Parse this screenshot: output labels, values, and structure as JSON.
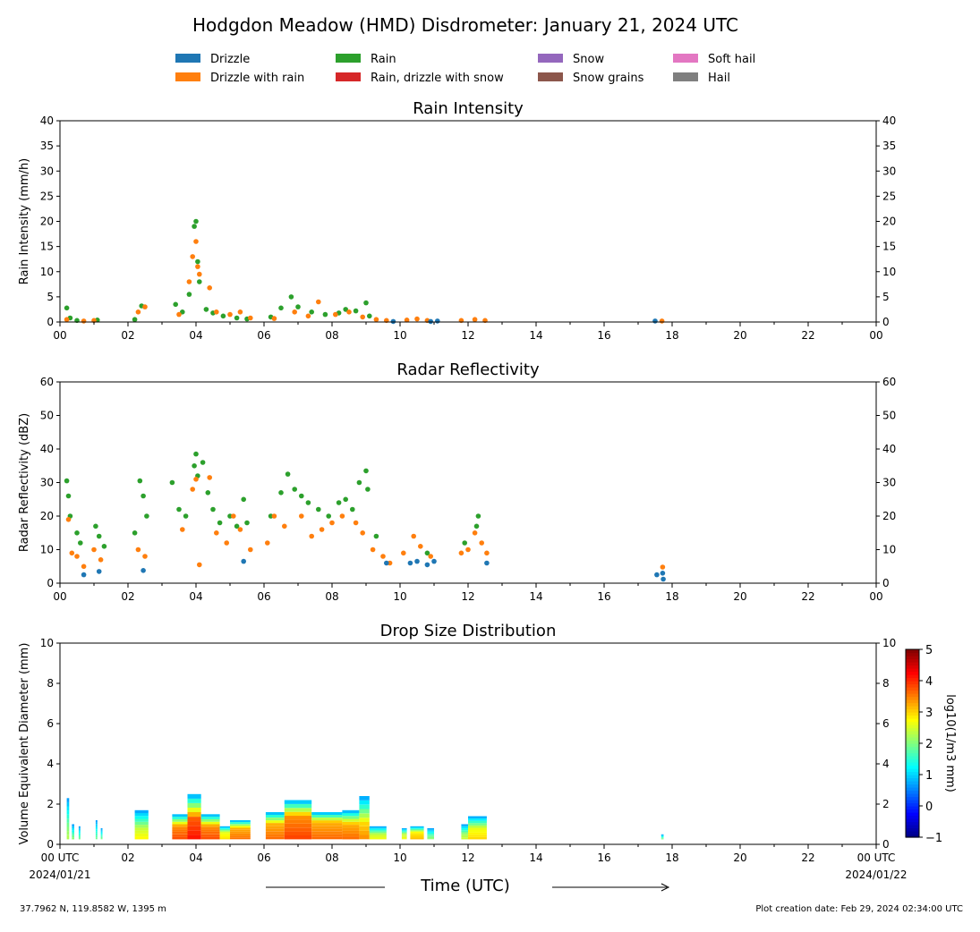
{
  "title": "Hodgdon Meadow (HMD) Disdrometer: January 21, 2024 UTC",
  "legend": [
    {
      "label": "Drizzle",
      "color": "#1f77b4"
    },
    {
      "label": "Drizzle with rain",
      "color": "#ff7f0e"
    },
    {
      "label": "Rain",
      "color": "#2ca02c"
    },
    {
      "label": "Rain, drizzle with snow",
      "color": "#d62728"
    },
    {
      "label": "Snow",
      "color": "#9467bd"
    },
    {
      "label": "Snow grains",
      "color": "#8c564b"
    },
    {
      "label": "Soft hail",
      "color": "#e377c2"
    },
    {
      "label": "Hail",
      "color": "#7f7f7f"
    }
  ],
  "x_axis": {
    "title": "Time (UTC)",
    "ticks": [
      "00",
      "02",
      "04",
      "06",
      "08",
      "10",
      "12",
      "14",
      "16",
      "18",
      "20",
      "22",
      "00"
    ],
    "bottom_ticks": [
      "00 UTC",
      "02",
      "04",
      "06",
      "08",
      "10",
      "12",
      "14",
      "16",
      "18",
      "20",
      "22",
      "00 UTC"
    ],
    "start_date": "2024/01/21",
    "end_date": "2024/01/22",
    "range_hours": [
      0,
      24
    ]
  },
  "footer": {
    "location": "37.7962 N, 119.8582 W, 1395 m",
    "created": "Plot creation date: Feb 29, 2024 02:34:00 UTC"
  },
  "chart_data": [
    {
      "type": "scatter",
      "title": "Rain Intensity",
      "ylabel": "Rain Intensity (mm/h)",
      "ylim": [
        0,
        40
      ],
      "yticks": [
        "0",
        "5",
        "10",
        "15",
        "20",
        "25",
        "30",
        "35",
        "40"
      ],
      "series": [
        {
          "name": "Rain",
          "color": "#2ca02c",
          "x": [
            0.2,
            0.3,
            0.5,
            1.1,
            2.2,
            2.4,
            3.4,
            3.6,
            3.8,
            3.95,
            4.0,
            4.05,
            4.1,
            4.3,
            4.5,
            4.8,
            5.2,
            5.5,
            6.2,
            6.5,
            6.8,
            7.0,
            7.4,
            7.8,
            8.2,
            8.4,
            8.7,
            9.0,
            9.1
          ],
          "y": [
            2.8,
            0.8,
            0.3,
            0.4,
            0.5,
            3.2,
            3.5,
            2.0,
            5.5,
            19.0,
            20.0,
            12.0,
            8.0,
            2.5,
            1.8,
            1.2,
            0.8,
            0.6,
            1.0,
            2.8,
            5.0,
            3.0,
            2.0,
            1.5,
            1.8,
            2.5,
            2.2,
            3.8,
            1.2
          ]
        },
        {
          "name": "Drizzle with rain",
          "color": "#ff7f0e",
          "x": [
            0.2,
            0.7,
            1.0,
            2.3,
            2.5,
            3.5,
            3.8,
            3.9,
            4.0,
            4.05,
            4.1,
            4.4,
            4.6,
            5.0,
            5.3,
            5.6,
            6.3,
            6.9,
            7.3,
            7.6,
            8.1,
            8.5,
            8.9,
            9.3,
            9.6,
            10.2,
            10.5,
            10.8,
            11.8,
            12.2,
            12.5,
            17.7
          ],
          "y": [
            0.5,
            0.2,
            0.3,
            2.0,
            3.0,
            1.5,
            8.0,
            13.0,
            16.0,
            11.0,
            9.5,
            6.8,
            2.0,
            1.5,
            2.0,
            0.8,
            0.7,
            2.0,
            1.2,
            4.0,
            1.5,
            2.0,
            1.0,
            0.5,
            0.3,
            0.4,
            0.6,
            0.3,
            0.3,
            0.5,
            0.3,
            0.2
          ]
        },
        {
          "name": "Drizzle",
          "color": "#1f77b4",
          "x": [
            9.8,
            10.9,
            11.1,
            17.5
          ],
          "y": [
            0.1,
            0.1,
            0.2,
            0.2
          ]
        }
      ]
    },
    {
      "type": "scatter",
      "title": "Radar Reflectivity",
      "ylabel": "Radar Reflectivity (dBZ)",
      "ylim": [
        0,
        60
      ],
      "yticks": [
        "0",
        "10",
        "20",
        "30",
        "40",
        "50",
        "60"
      ],
      "series": [
        {
          "name": "Rain",
          "color": "#2ca02c",
          "x": [
            0.2,
            0.25,
            0.3,
            0.5,
            0.6,
            1.05,
            1.15,
            1.3,
            2.2,
            2.35,
            2.45,
            2.55,
            3.3,
            3.5,
            3.7,
            3.95,
            4.0,
            4.05,
            4.2,
            4.35,
            4.5,
            4.7,
            5.0,
            5.2,
            5.4,
            5.5,
            6.2,
            6.5,
            6.7,
            6.9,
            7.1,
            7.3,
            7.6,
            7.9,
            8.2,
            8.4,
            8.6,
            8.8,
            9.0,
            9.05,
            9.3,
            10.8,
            11.9,
            12.25,
            12.3
          ],
          "y": [
            30.5,
            26.0,
            20.0,
            15.0,
            12.0,
            17.0,
            14.0,
            11.0,
            15.0,
            30.5,
            26.0,
            20.0,
            30.0,
            22.0,
            20.0,
            35.0,
            38.5,
            32.0,
            36.0,
            27.0,
            22.0,
            18.0,
            20.0,
            17.0,
            25.0,
            18.0,
            20.0,
            27.0,
            32.5,
            28.0,
            26.0,
            24.0,
            22.0,
            20.0,
            24.0,
            25.0,
            22.0,
            30.0,
            33.5,
            28.0,
            14.0,
            9.0,
            12.0,
            17.0,
            20.0
          ]
        },
        {
          "name": "Drizzle with rain",
          "color": "#ff7f0e",
          "x": [
            0.25,
            0.35,
            0.5,
            0.7,
            1.0,
            1.2,
            2.3,
            2.5,
            3.6,
            3.9,
            4.0,
            4.1,
            4.4,
            4.6,
            4.9,
            5.1,
            5.3,
            5.6,
            6.1,
            6.3,
            6.6,
            7.1,
            7.4,
            7.7,
            8.0,
            8.3,
            8.7,
            8.9,
            9.2,
            9.5,
            9.7,
            10.1,
            10.4,
            10.6,
            10.9,
            11.8,
            12.0,
            12.2,
            12.4,
            12.55,
            17.72
          ],
          "y": [
            19.0,
            9.0,
            8.0,
            5.0,
            10.0,
            7.0,
            10.0,
            8.0,
            16.0,
            28.0,
            31.0,
            5.5,
            31.5,
            15.0,
            12.0,
            20.0,
            16.0,
            10.0,
            12.0,
            20.0,
            17.0,
            20.0,
            14.0,
            16.0,
            18.0,
            20.0,
            18.0,
            15.0,
            10.0,
            8.0,
            6.0,
            9.0,
            14.0,
            11.0,
            8.0,
            9.0,
            10.0,
            15.0,
            12.0,
            9.0,
            4.8
          ]
        },
        {
          "name": "Drizzle",
          "color": "#1f77b4",
          "x": [
            0.7,
            1.15,
            2.45,
            5.4,
            9.6,
            10.3,
            10.5,
            10.8,
            11.0,
            12.55,
            17.55,
            17.72,
            17.74
          ],
          "y": [
            2.5,
            3.5,
            3.8,
            6.5,
            6.0,
            6.0,
            6.5,
            5.5,
            6.5,
            6.0,
            2.5,
            3.0,
            1.2
          ]
        }
      ]
    },
    {
      "type": "heatmap",
      "title": "Drop Size Distribution",
      "ylabel": "Volume Equivalent Diameter (mm)",
      "ylim": [
        0,
        10
      ],
      "yticks": [
        "0",
        "2",
        "4",
        "6",
        "8",
        "10"
      ],
      "colorbar": {
        "label": "log10(1/m3 mm)",
        "ticks": [
          "−1",
          "0",
          "1",
          "2",
          "3",
          "4",
          "5"
        ],
        "range": [
          -1,
          5
        ]
      },
      "columns": [
        {
          "t0": 0.2,
          "t1": 0.27,
          "top": 2.3,
          "core": 1.0,
          "peak": 2.5
        },
        {
          "t0": 0.35,
          "t1": 0.42,
          "top": 1.0,
          "core": 0.4,
          "peak": 2.5
        },
        {
          "t0": 0.55,
          "t1": 0.6,
          "top": 0.9,
          "core": 0.3,
          "peak": 2.5
        },
        {
          "t0": 1.05,
          "t1": 1.1,
          "top": 1.2,
          "core": 0.3,
          "peak": 2.5
        },
        {
          "t0": 1.2,
          "t1": 1.25,
          "top": 0.8,
          "core": 0.3,
          "peak": 2.5
        },
        {
          "t0": 2.2,
          "t1": 2.6,
          "top": 1.7,
          "core": 0.8,
          "peak": 3.0
        },
        {
          "t0": 3.3,
          "t1": 3.75,
          "top": 1.5,
          "core": 0.9,
          "peak": 4.0
        },
        {
          "t0": 3.75,
          "t1": 4.15,
          "top": 2.5,
          "core": 1.3,
          "peak": 4.3
        },
        {
          "t0": 4.15,
          "t1": 4.7,
          "top": 1.5,
          "core": 0.9,
          "peak": 4.0
        },
        {
          "t0": 4.7,
          "t1": 5.0,
          "top": 0.9,
          "core": 0.6,
          "peak": 3.2
        },
        {
          "t0": 5.0,
          "t1": 5.6,
          "top": 1.2,
          "core": 0.8,
          "peak": 3.8
        },
        {
          "t0": 6.05,
          "t1": 6.6,
          "top": 1.6,
          "core": 1.0,
          "peak": 3.8
        },
        {
          "t0": 6.6,
          "t1": 7.4,
          "top": 2.2,
          "core": 1.4,
          "peak": 4.0
        },
        {
          "t0": 7.4,
          "t1": 8.3,
          "top": 1.6,
          "core": 1.1,
          "peak": 3.8
        },
        {
          "t0": 8.3,
          "t1": 8.8,
          "top": 1.7,
          "core": 1.0,
          "peak": 3.8
        },
        {
          "t0": 8.8,
          "t1": 9.1,
          "top": 2.4,
          "core": 1.0,
          "peak": 3.6
        },
        {
          "t0": 9.1,
          "t1": 9.6,
          "top": 0.9,
          "core": 0.5,
          "peak": 3.0
        },
        {
          "t0": 10.05,
          "t1": 10.2,
          "top": 0.8,
          "core": 0.5,
          "peak": 3.0
        },
        {
          "t0": 10.3,
          "t1": 10.7,
          "top": 0.9,
          "core": 0.6,
          "peak": 3.4
        },
        {
          "t0": 10.8,
          "t1": 11.0,
          "top": 0.8,
          "core": 0.4,
          "peak": 2.5
        },
        {
          "t0": 11.8,
          "t1": 12.0,
          "top": 1.0,
          "core": 0.5,
          "peak": 2.8
        },
        {
          "t0": 12.0,
          "t1": 12.55,
          "top": 1.4,
          "core": 0.8,
          "peak": 3.2
        },
        {
          "t0": 17.68,
          "t1": 17.75,
          "top": 0.5,
          "core": 0.3,
          "peak": 2.5
        }
      ]
    }
  ]
}
